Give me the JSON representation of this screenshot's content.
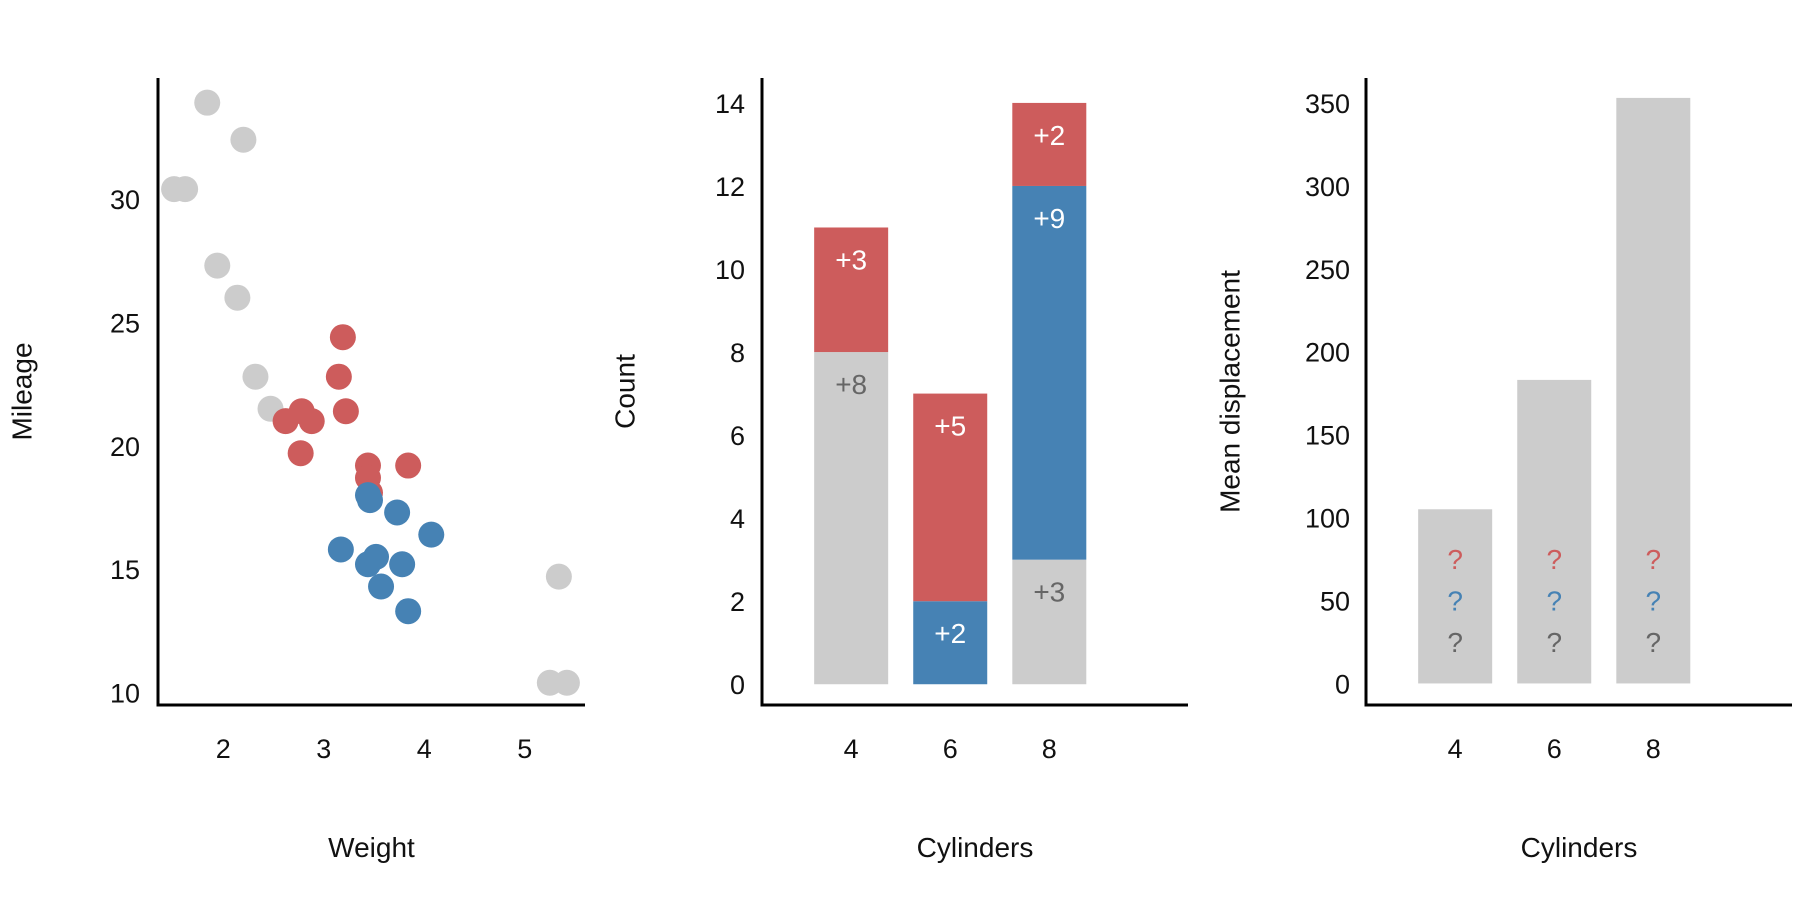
{
  "colors": {
    "gray": "#cccccc",
    "red": "#cd5c5c",
    "blue": "#4682b4",
    "dark_text": "#666666",
    "white_text": "#ffffff"
  },
  "chart_data": [
    {
      "type": "scatter",
      "xlabel": "Weight",
      "ylabel": "Mileage",
      "xticks": [
        2,
        3,
        4,
        5
      ],
      "yticks": [
        10,
        15,
        20,
        25,
        30
      ],
      "xlim": [
        1.35,
        5.6
      ],
      "ylim": [
        9.5,
        34.9
      ],
      "groups": [
        {
          "color": "gray",
          "points": [
            [
              1.51,
              30.4
            ],
            [
              1.62,
              30.4
            ],
            [
              1.84,
              33.9
            ],
            [
              1.94,
              27.3
            ],
            [
              2.14,
              26.0
            ],
            [
              2.2,
              32.4
            ],
            [
              2.32,
              22.8
            ],
            [
              2.47,
              21.5
            ],
            [
              5.25,
              10.4
            ],
            [
              5.34,
              14.7
            ],
            [
              5.42,
              10.4
            ]
          ]
        },
        {
          "color": "red",
          "points": [
            [
              2.62,
              21.0
            ],
            [
              2.78,
              21.4
            ],
            [
              2.77,
              19.7
            ],
            [
              2.88,
              21.0
            ],
            [
              3.19,
              24.4
            ],
            [
              3.15,
              22.8
            ],
            [
              3.22,
              21.4
            ],
            [
              3.44,
              19.2
            ],
            [
              3.44,
              18.7
            ],
            [
              3.46,
              18.1
            ],
            [
              3.84,
              19.2
            ]
          ]
        },
        {
          "color": "blue",
          "points": [
            [
              3.17,
              15.8
            ],
            [
              3.44,
              15.2
            ],
            [
              3.46,
              17.8
            ],
            [
              3.52,
              15.5
            ],
            [
              3.57,
              14.3
            ],
            [
              3.73,
              17.3
            ],
            [
              3.78,
              15.2
            ],
            [
              3.84,
              13.3
            ],
            [
              4.07,
              16.4
            ],
            [
              3.44,
              18.0
            ]
          ]
        }
      ]
    },
    {
      "type": "bar",
      "stacked": true,
      "xlabel": "Cylinders",
      "ylabel": "Count",
      "categories": [
        "4",
        "6",
        "8"
      ],
      "yticks": [
        0,
        2,
        4,
        6,
        8,
        10,
        12,
        14
      ],
      "ylim": [
        -0.5,
        14.6
      ],
      "xlim": [
        2.2,
        10.8
      ],
      "stacks": [
        [
          {
            "value": 8,
            "color": "gray",
            "label": "+8"
          },
          {
            "value": 3,
            "color": "red",
            "label": "+3"
          }
        ],
        [
          {
            "value": 2,
            "color": "blue",
            "label": "+2"
          },
          {
            "value": 5,
            "color": "red",
            "label": "+5"
          }
        ],
        [
          {
            "value": 3,
            "color": "gray",
            "label": "+3"
          },
          {
            "value": 9,
            "color": "blue",
            "label": "+9"
          },
          {
            "value": 2,
            "color": "red",
            "label": "+2"
          }
        ]
      ]
    },
    {
      "type": "bar",
      "xlabel": "Cylinders",
      "ylabel": "Mean displacement",
      "categories": [
        "4",
        "6",
        "8"
      ],
      "values": [
        105,
        183,
        353
      ],
      "yticks": [
        0,
        50,
        100,
        150,
        200,
        250,
        300,
        350
      ],
      "ylim": [
        -13,
        365
      ],
      "xlim": [
        2.2,
        10.8
      ],
      "bar_color": "gray",
      "annotations": [
        {
          "text": "?",
          "color": "red",
          "value": 75
        },
        {
          "text": "?",
          "color": "blue",
          "value": 50
        },
        {
          "text": "?",
          "color": "dark_text",
          "value": 25
        }
      ]
    }
  ]
}
